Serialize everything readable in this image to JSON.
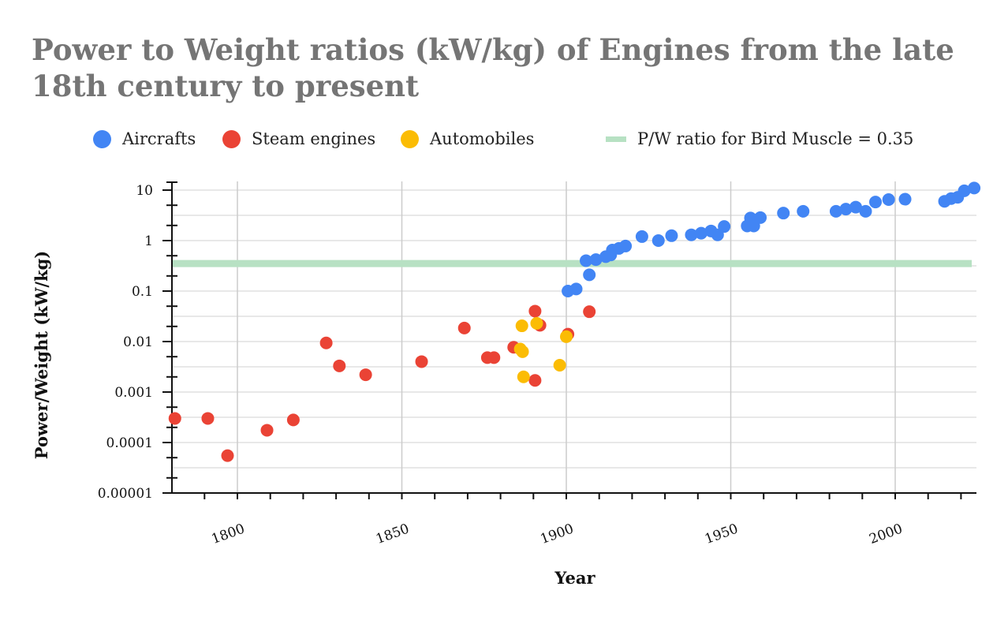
{
  "chart_data": {
    "type": "scatter",
    "title": "Power to Weight ratios (kW/kg) of Engines from the late 18th century to present",
    "xlabel": "Year",
    "ylabel": "Power/Weight (kW/kg)",
    "x_scale": "linear",
    "y_scale": "log",
    "xlim": [
      1780,
      2025
    ],
    "ylim": [
      1e-05,
      15
    ],
    "x_ticks": [
      1800,
      1850,
      1900,
      1950,
      2000
    ],
    "x_tick_labels": [
      "1800",
      "1850",
      "1900",
      "1950",
      "2000"
    ],
    "y_ticks": [
      1e-05,
      0.0001,
      0.001,
      0.01,
      0.1,
      1,
      10
    ],
    "y_tick_labels": [
      "0.00001",
      "0.0001",
      "0.001",
      "0.01",
      "0.1",
      "1",
      "10"
    ],
    "grid": true,
    "legend_position": "top",
    "series": [
      {
        "name": "Aircrafts",
        "color": "#4285F4",
        "points": [
          [
            1900.5,
            0.1
          ],
          [
            1903,
            0.11
          ],
          [
            1906,
            0.4
          ],
          [
            1907,
            0.21
          ],
          [
            1909,
            0.42
          ],
          [
            1912,
            0.48
          ],
          [
            1913.5,
            0.52
          ],
          [
            1914,
            0.65
          ],
          [
            1916,
            0.7
          ],
          [
            1918,
            0.78
          ],
          [
            1923,
            1.2
          ],
          [
            1928,
            1.0
          ],
          [
            1932,
            1.25
          ],
          [
            1938,
            1.3
          ],
          [
            1941,
            1.4
          ],
          [
            1944,
            1.55
          ],
          [
            1946,
            1.3
          ],
          [
            1948,
            1.9
          ],
          [
            1955,
            1.95
          ],
          [
            1956,
            2.8
          ],
          [
            1957,
            1.95
          ],
          [
            1959,
            2.85
          ],
          [
            1966,
            3.5
          ],
          [
            1972,
            3.8
          ],
          [
            1982,
            3.8
          ],
          [
            1985,
            4.2
          ],
          [
            1988,
            4.6
          ],
          [
            1991,
            3.8
          ],
          [
            1994,
            5.8
          ],
          [
            1998,
            6.5
          ],
          [
            2003,
            6.6
          ],
          [
            2015,
            6.0
          ],
          [
            2017,
            6.8
          ],
          [
            2019,
            7.2
          ],
          [
            2021,
            9.7
          ],
          [
            2024,
            11.0
          ]
        ]
      },
      {
        "name": "Steam engines",
        "color": "#EA4335",
        "points": [
          [
            1781,
            0.0003
          ],
          [
            1791,
            0.0003
          ],
          [
            1797,
            5.5e-05
          ],
          [
            1809,
            0.000175
          ],
          [
            1817,
            0.00028
          ],
          [
            1827,
            0.0094
          ],
          [
            1831,
            0.0033
          ],
          [
            1839,
            0.0022
          ],
          [
            1856,
            0.004
          ],
          [
            1869,
            0.0185
          ],
          [
            1876,
            0.0048
          ],
          [
            1878,
            0.0048
          ],
          [
            1884,
            0.0077
          ],
          [
            1890.5,
            0.0017
          ],
          [
            1890.5,
            0.04
          ],
          [
            1892,
            0.021
          ],
          [
            1900.5,
            0.014
          ],
          [
            1907,
            0.039
          ]
        ]
      },
      {
        "name": "Automobiles",
        "color": "#FBBC04",
        "points": [
          [
            1886,
            0.0071
          ],
          [
            1886.5,
            0.0205
          ],
          [
            1886.7,
            0.0063
          ],
          [
            1887,
            0.002
          ],
          [
            1891,
            0.023
          ],
          [
            1898,
            0.0034
          ],
          [
            1900,
            0.0125
          ]
        ]
      }
    ],
    "reference_lines": [
      {
        "name": "P/W ratio for Bird Muscle = 0.35",
        "y": 0.35,
        "color": "#B7E1C3"
      }
    ]
  },
  "legend": {
    "aircrafts": "Aircrafts",
    "steam": "Steam engines",
    "auto": "Automobiles",
    "bird": "P/W ratio for Bird Muscle = 0.35"
  }
}
